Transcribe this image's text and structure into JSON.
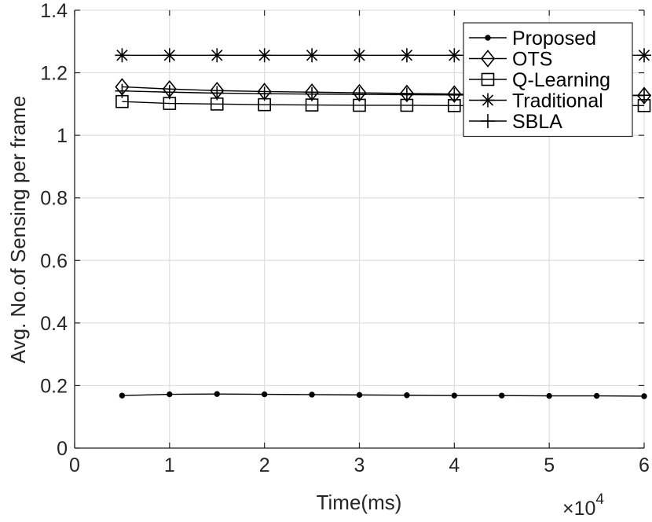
{
  "chart_data": {
    "type": "line",
    "title": "",
    "xlabel": "Time(ms)",
    "ylabel": "Avg. No.of Sensing per frame",
    "x_multiplier_label": "×10",
    "x_multiplier_exponent": "4",
    "xlim": [
      0,
      60000
    ],
    "ylim": [
      0,
      1.4
    ],
    "x_ticks": [
      0,
      10000,
      20000,
      30000,
      40000,
      50000,
      60000
    ],
    "x_tick_labels": [
      "0",
      "1",
      "2",
      "3",
      "4",
      "5",
      "6"
    ],
    "y_ticks": [
      0,
      0.2,
      0.4,
      0.6,
      0.8,
      1.0,
      1.2,
      1.4
    ],
    "y_tick_labels": [
      "0",
      "0.2",
      "0.4",
      "0.6",
      "0.8",
      "1",
      "1.2",
      "1.4"
    ],
    "grid": true,
    "legend_position": "top-right",
    "x": [
      5000,
      10000,
      15000,
      20000,
      25000,
      30000,
      35000,
      40000,
      45000,
      50000,
      55000,
      60000
    ],
    "series": [
      {
        "name": "Proposed",
        "marker": "dot",
        "values": [
          0.168,
          0.172,
          0.173,
          0.172,
          0.171,
          0.17,
          0.169,
          0.168,
          0.168,
          0.167,
          0.167,
          0.166
        ]
      },
      {
        "name": "OTS",
        "marker": "diamond",
        "values": [
          1.155,
          1.148,
          1.143,
          1.14,
          1.138,
          1.136,
          1.134,
          1.132,
          1.13,
          1.129,
          1.128,
          1.127
        ]
      },
      {
        "name": "Q-Learning",
        "marker": "square",
        "values": [
          1.108,
          1.102,
          1.1,
          1.098,
          1.097,
          1.096,
          1.096,
          1.095,
          1.095,
          1.095,
          1.095,
          1.095
        ]
      },
      {
        "name": "Traditional",
        "marker": "asterisk",
        "values": [
          1.256,
          1.256,
          1.256,
          1.256,
          1.256,
          1.256,
          1.256,
          1.256,
          1.256,
          1.256,
          1.256,
          1.256
        ]
      },
      {
        "name": "SBLA",
        "marker": "plus",
        "values": [
          1.142,
          1.138,
          1.135,
          1.133,
          1.132,
          1.131,
          1.13,
          1.129,
          1.129,
          1.128,
          1.128,
          1.128
        ]
      }
    ]
  }
}
